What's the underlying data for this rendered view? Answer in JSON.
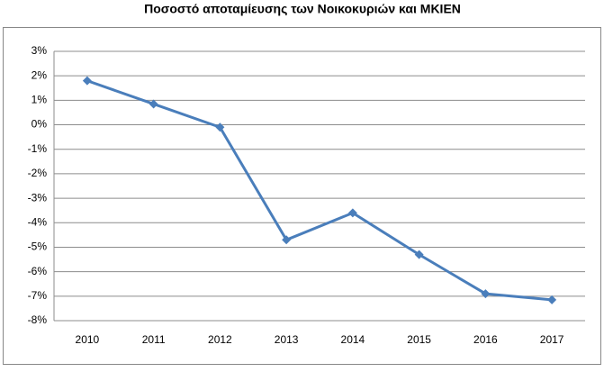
{
  "chart_data": {
    "type": "line",
    "title": "Ποσοστό αποταμίευσης των Νοικοκυριών και ΜΚΙΕΝ",
    "categories": [
      "2010",
      "2011",
      "2012",
      "2013",
      "2014",
      "2015",
      "2016",
      "2017"
    ],
    "series": [
      {
        "name": "Ποσοστό αποταμίευσης",
        "color": "#4a7ebb",
        "values": [
          1.8,
          0.85,
          -0.1,
          -4.7,
          -3.6,
          -5.3,
          -6.9,
          -7.15
        ]
      }
    ],
    "ylim": [
      -8,
      3
    ],
    "yticks": [
      {
        "value": -8,
        "label": "-8%"
      },
      {
        "value": -7,
        "label": "-7%"
      },
      {
        "value": -6,
        "label": "-6%"
      },
      {
        "value": -5,
        "label": "-5%"
      },
      {
        "value": -4,
        "label": "-4%"
      },
      {
        "value": -3,
        "label": "-3%"
      },
      {
        "value": -2,
        "label": "-2%"
      },
      {
        "value": -1,
        "label": "-1%"
      },
      {
        "value": 0,
        "label": "0%"
      },
      {
        "value": 1,
        "label": "1%"
      },
      {
        "value": 2,
        "label": "2%"
      },
      {
        "value": 3,
        "label": "3%"
      }
    ],
    "grid": true
  }
}
